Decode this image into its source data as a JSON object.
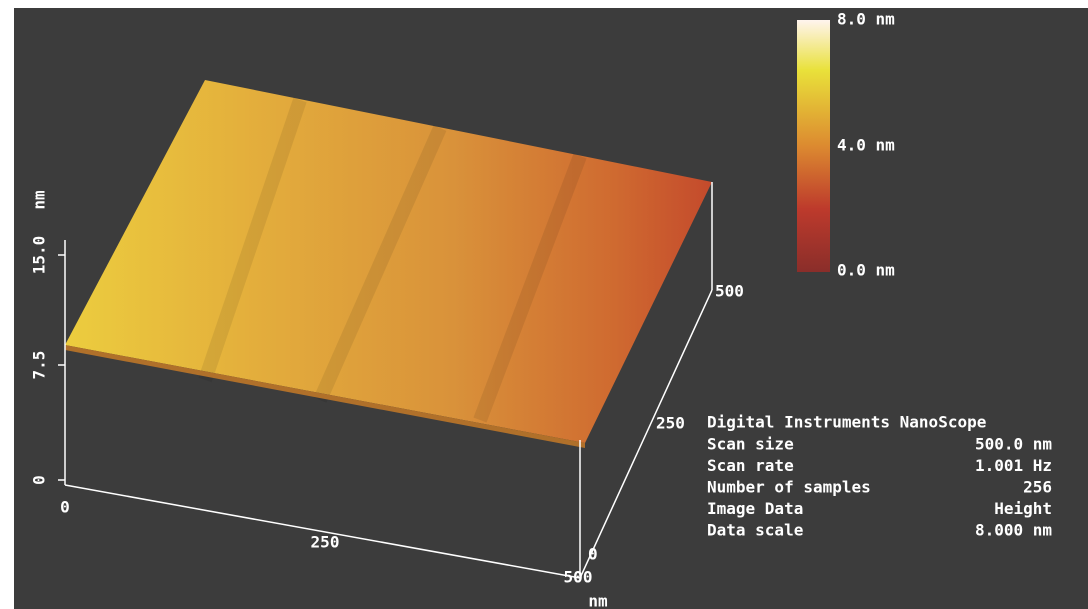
{
  "colorbar": {
    "labels": [
      "8.0 nm",
      "4.0 nm",
      "0.0 nm"
    ]
  },
  "axes": {
    "z": {
      "label": "nm",
      "ticks": [
        "0",
        "7.5",
        "15.0"
      ]
    },
    "x": {
      "label": "nm",
      "ticks": [
        "0",
        "250",
        "500"
      ]
    },
    "y": {
      "ticks": [
        "0",
        "250",
        "500"
      ]
    }
  },
  "info": {
    "title": "Digital Instruments NanoScope",
    "rows": [
      [
        "Scan size",
        "500.0 nm"
      ],
      [
        "Scan rate",
        "1.001 Hz"
      ],
      [
        "Number of samples",
        "256"
      ],
      [
        "Image Data",
        "Height"
      ],
      [
        "Data scale",
        "8.000 nm"
      ]
    ]
  }
}
